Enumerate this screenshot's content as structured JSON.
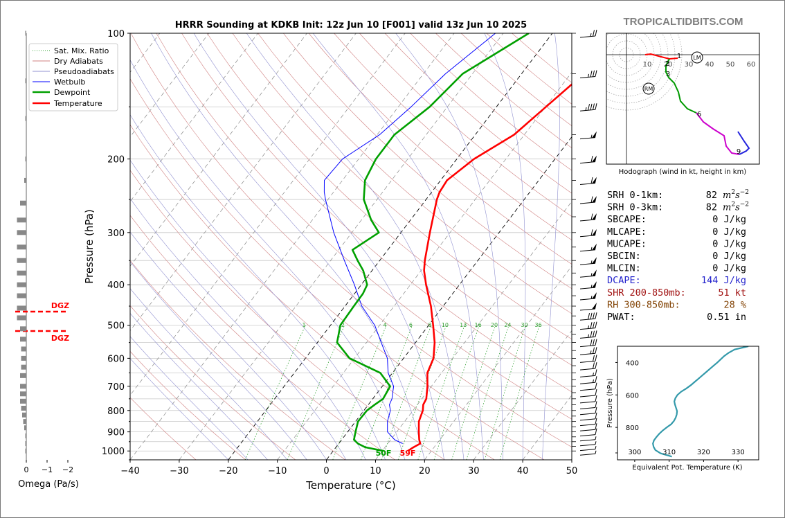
{
  "chart_data": [
    {
      "type": "line",
      "name": "skew-t",
      "title": "HRRR Sounding at KDKB Init: 12z Jun 10 [F001] valid 13z Jun 10 2025",
      "xlabel": "Temperature (°C)",
      "ylabel": "Pressure (hPa)",
      "xlim": [
        -40,
        50
      ],
      "ylim": [
        1050,
        100
      ],
      "y_scale": "log",
      "x_ticks": [
        "−40",
        "−30",
        "−20",
        "−10",
        "0",
        "10",
        "20",
        "30",
        "40",
        "50"
      ],
      "y_ticks": [
        "100",
        "200",
        "300",
        "400",
        "500",
        "600",
        "700",
        "800",
        "900",
        "1000"
      ],
      "legend": {
        "position": "top-left",
        "entries": [
          "Sat. Mix. Ratio",
          "Dry Adiabats",
          "Pseudoadiabats",
          "Wetbulb",
          "Dewpoint",
          "Temperature"
        ]
      },
      "mixing_ratio_labels": [
        "1",
        "2",
        "4",
        "6",
        "8",
        "10",
        "13",
        "16",
        "20",
        "24",
        "30",
        "36"
      ],
      "surface_labels": {
        "dewpoint": "50F",
        "temperature": "59F"
      },
      "colors": {
        "temperature": "#ff0000",
        "dewpoint": "#00a000",
        "wetbulb": "#0000ff",
        "dry": "#d08080",
        "moist": "#9090d0",
        "mixratio": "#30a030",
        "isotherm": "#888888"
      },
      "series": [
        {
          "name": "Temperature",
          "p": [
            1000,
            980,
            960,
            940,
            900,
            850,
            800,
            775,
            750,
            700,
            650,
            600,
            550,
            500,
            450,
            400,
            370,
            350,
            300,
            250,
            240,
            225,
            200,
            175,
            150,
            125,
            100
          ],
          "t": [
            15.2,
            15.8,
            16.6,
            15.8,
            14.5,
            12.9,
            12.0,
            11.2,
            10.9,
            9.2,
            7.1,
            6.1,
            3.9,
            0.9,
            -2.5,
            -6.8,
            -9.4,
            -10.8,
            -14.1,
            -17.8,
            -18.4,
            -18.7,
            -16.5,
            -12.1,
            -9.9,
            -7.3,
            -4.0
          ]
        },
        {
          "name": "Dewpoint",
          "p": [
            1000,
            980,
            960,
            940,
            900,
            850,
            800,
            775,
            750,
            700,
            650,
            600,
            550,
            500,
            450,
            420,
            400,
            370,
            350,
            330,
            300,
            280,
            250,
            225,
            200,
            175,
            150,
            125,
            100
          ],
          "t": [
            10.3,
            6.0,
            3.9,
            2.5,
            1.6,
            0.5,
            0.6,
            1.3,
            2.1,
            1.6,
            -2.5,
            -11.0,
            -16.0,
            -18.0,
            -18.2,
            -18.3,
            -18.8,
            -21.8,
            -24.5,
            -27.2,
            -24.5,
            -28.0,
            -32.7,
            -35.4,
            -36.5,
            -36.5,
            -33.6,
            -32.0,
            -24.8
          ]
        },
        {
          "name": "Wetbulb",
          "p": [
            960,
            940,
            900,
            850,
            800,
            775,
            750,
            700,
            650,
            600,
            550,
            500,
            450,
            400,
            350,
            300,
            250,
            240,
            225,
            200,
            175,
            150,
            125,
            100
          ],
          "t": [
            13.0,
            10.8,
            8.1,
            6.5,
            5.4,
            4.3,
            3.9,
            2.3,
            -0.9,
            -3.3,
            -7.0,
            -11.0,
            -16.6,
            -21.4,
            -27.2,
            -33.7,
            -40.5,
            -41.9,
            -43.7,
            -43.3,
            -39.5,
            -37.4,
            -35.5,
            -31.6
          ]
        }
      ]
    },
    {
      "type": "line",
      "name": "hodograph",
      "xlabel": "Hodograph (wind in kt, height in km)",
      "ring_labels": [
        "10",
        "20",
        "30",
        "40",
        "50",
        "60"
      ],
      "markers": [
        "1",
        "2",
        "3",
        "6",
        "9"
      ],
      "storm_motion_labels": [
        "LM",
        "RM"
      ],
      "colors": [
        "#ff0000",
        "#009900",
        "#cc00cc",
        "#2222dd"
      ]
    },
    {
      "type": "line",
      "name": "theta-e",
      "xlabel": "Equivalent Pot. Temperature (K)",
      "ylabel": "Pressure (hPa)",
      "xlim": [
        295,
        336
      ],
      "ylim": [
        1000,
        300
      ],
      "x_ticks": [
        "300",
        "310",
        "320",
        "330"
      ],
      "y_ticks": [
        "400",
        "600",
        "800"
      ],
      "color": "#3399aa",
      "series": [
        {
          "name": "theta-e",
          "p": [
            980,
            960,
            940,
            920,
            900,
            880,
            860,
            840,
            820,
            800,
            780,
            760,
            740,
            720,
            700,
            680,
            660,
            640,
            620,
            600,
            580,
            560,
            540,
            520,
            500,
            480,
            460,
            440,
            420,
            400,
            380,
            360,
            340,
            320,
            300
          ],
          "x": [
            310.8,
            307.5,
            306.0,
            305.5,
            305.3,
            305.6,
            306.3,
            307.1,
            308.1,
            309.3,
            310.6,
            311.4,
            311.9,
            312.2,
            312.3,
            312.0,
            311.7,
            311.5,
            311.8,
            312.4,
            313.5,
            315.0,
            316.3,
            317.4,
            318.5,
            319.6,
            320.7,
            321.8,
            322.9,
            324.0,
            325.0,
            326.0,
            327.3,
            329.0,
            333.0
          ]
        }
      ]
    }
  ],
  "brand": "TROPICALTIDBITS.COM",
  "omega_panel": {
    "xlabel": "Omega (Pa/s)",
    "x_ticks": [
      "0",
      "−1",
      "−2"
    ],
    "dgz_label": "DGZ",
    "bar_color": "#888888"
  },
  "indices": {
    "rows": [
      {
        "label": "SRH 0-1km:",
        "value": "82",
        "color": "#000000"
      },
      {
        "label": "SRH 0-3km:",
        "value": "82",
        "color": "#000000"
      },
      {
        "label": "SBCAPE:",
        "value": "0 J/kg",
        "color": "#000000"
      },
      {
        "label": "MLCAPE:",
        "value": "0 J/kg",
        "color": "#000000"
      },
      {
        "label": "MUCAPE:",
        "value": "0 J/kg",
        "color": "#000000"
      },
      {
        "label": "SBCIN:",
        "value": "0 J/kg",
        "color": "#000000"
      },
      {
        "label": "MLCIN:",
        "value": "0 J/kg",
        "color": "#000000"
      },
      {
        "label": "DCAPE:",
        "value": "144 J/kg",
        "color": "#2222cc"
      },
      {
        "label": "SHR 200-850mb:",
        "value": "51 kt",
        "color": "#a01010"
      },
      {
        "label": "RH 300-850mb:",
        "value": "28 %",
        "color": "#804000"
      },
      {
        "label": "PWAT:",
        "value": "0.51 in",
        "color": "#000000"
      }
    ],
    "srh_unit_base": "m",
    "srh_unit_sup1": "2",
    "srh_unit_s": "s",
    "srh_unit_sup2": "−2"
  },
  "wind_barbs": {
    "pressures": [
      100,
      125,
      150,
      175,
      200,
      225,
      250,
      275,
      300,
      325,
      350,
      375,
      400,
      425,
      450,
      475,
      500,
      525,
      550,
      575,
      600,
      625,
      650,
      675,
      700,
      725,
      750,
      775,
      800,
      825,
      850,
      875,
      900,
      925,
      950,
      975,
      1000
    ],
    "speeds_kt": [
      25,
      35,
      45,
      55,
      60,
      60,
      60,
      60,
      60,
      55,
      55,
      55,
      55,
      55,
      50,
      40,
      35,
      35,
      30,
      25,
      20,
      20,
      15,
      15,
      10,
      10,
      10,
      10,
      10,
      10,
      10,
      10,
      10,
      5,
      5,
      5,
      5
    ]
  }
}
